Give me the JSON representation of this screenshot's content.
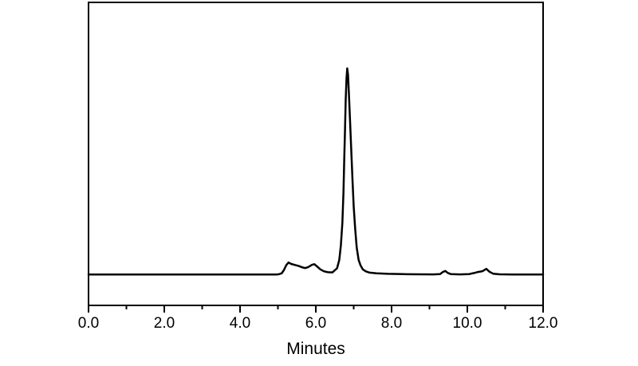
{
  "colors": {
    "background": "#ffffff",
    "trace": "#000000",
    "axis": "#000000",
    "text": "#000000"
  },
  "chart_data": {
    "type": "line",
    "title": "",
    "xlabel": "Minutes",
    "ylabel": "",
    "xlim": [
      0,
      12
    ],
    "ylim": [
      -15,
      132
    ],
    "grid": false,
    "legend": null,
    "frame": "full-box",
    "line_width": 2.5,
    "frame_width": 2,
    "tick_width": 2,
    "major_tick_len": 9,
    "minor_tick_len": 5,
    "tick_label_font_size": 19,
    "axis_title_font_size": 21,
    "xticks": {
      "labels": [
        "0.0",
        "2.0",
        "4.0",
        "6.0",
        "8.0",
        "10.0",
        "12.0"
      ],
      "major": [
        0,
        2,
        4,
        6,
        8,
        10,
        12
      ],
      "minor": [
        1,
        3,
        5,
        7,
        9,
        11
      ]
    },
    "yticks": {
      "labels": [],
      "major": [],
      "minor": []
    },
    "series": [
      {
        "name": "chromatogram-trace",
        "main_peak_minutes": 6.83,
        "points": [
          [
            0,
            0
          ],
          [
            0.6,
            0
          ],
          [
            1.2,
            0
          ],
          [
            1.8,
            0
          ],
          [
            2.4,
            0
          ],
          [
            3.0,
            0
          ],
          [
            3.6,
            0
          ],
          [
            4.2,
            0
          ],
          [
            4.7,
            0
          ],
          [
            4.95,
            0
          ],
          [
            5.02,
            0.1
          ],
          [
            5.1,
            0.6
          ],
          [
            5.16,
            2.2
          ],
          [
            5.22,
            4.5
          ],
          [
            5.28,
            5.8
          ],
          [
            5.35,
            5.1
          ],
          [
            5.45,
            4.6
          ],
          [
            5.55,
            4.1
          ],
          [
            5.65,
            3.4
          ],
          [
            5.72,
            3.1
          ],
          [
            5.8,
            3.6
          ],
          [
            5.9,
            4.7
          ],
          [
            5.96,
            5.0
          ],
          [
            6.04,
            3.8
          ],
          [
            6.12,
            2.5
          ],
          [
            6.22,
            1.5
          ],
          [
            6.32,
            1.1
          ],
          [
            6.44,
            1.0
          ],
          [
            6.56,
            3
          ],
          [
            6.62,
            7
          ],
          [
            6.66,
            14
          ],
          [
            6.7,
            25
          ],
          [
            6.73,
            40
          ],
          [
            6.75,
            55
          ],
          [
            6.77,
            70
          ],
          [
            6.79,
            85
          ],
          [
            6.81,
            95
          ],
          [
            6.83,
            100
          ],
          [
            6.85,
            97
          ],
          [
            6.88,
            85
          ],
          [
            6.91,
            72
          ],
          [
            6.94,
            58
          ],
          [
            6.97,
            45
          ],
          [
            7.0,
            33
          ],
          [
            7.04,
            22
          ],
          [
            7.08,
            13
          ],
          [
            7.13,
            7
          ],
          [
            7.18,
            4.5
          ],
          [
            7.24,
            2.5
          ],
          [
            7.32,
            1.5
          ],
          [
            7.42,
            0.9
          ],
          [
            7.6,
            0.6
          ],
          [
            7.9,
            0.3
          ],
          [
            8.3,
            0.15
          ],
          [
            8.7,
            0.1
          ],
          [
            9.1,
            0.05
          ],
          [
            9.28,
            0.2
          ],
          [
            9.36,
            1.3
          ],
          [
            9.42,
            1.7
          ],
          [
            9.48,
            0.8
          ],
          [
            9.56,
            0.2
          ],
          [
            9.8,
            0.05
          ],
          [
            10.05,
            0.2
          ],
          [
            10.18,
            0.7
          ],
          [
            10.28,
            1.2
          ],
          [
            10.4,
            1.6
          ],
          [
            10.5,
            2.7
          ],
          [
            10.58,
            1.4
          ],
          [
            10.68,
            0.4
          ],
          [
            10.85,
            0.1
          ],
          [
            11.2,
            0
          ],
          [
            11.6,
            0
          ],
          [
            12,
            0
          ]
        ]
      }
    ]
  }
}
